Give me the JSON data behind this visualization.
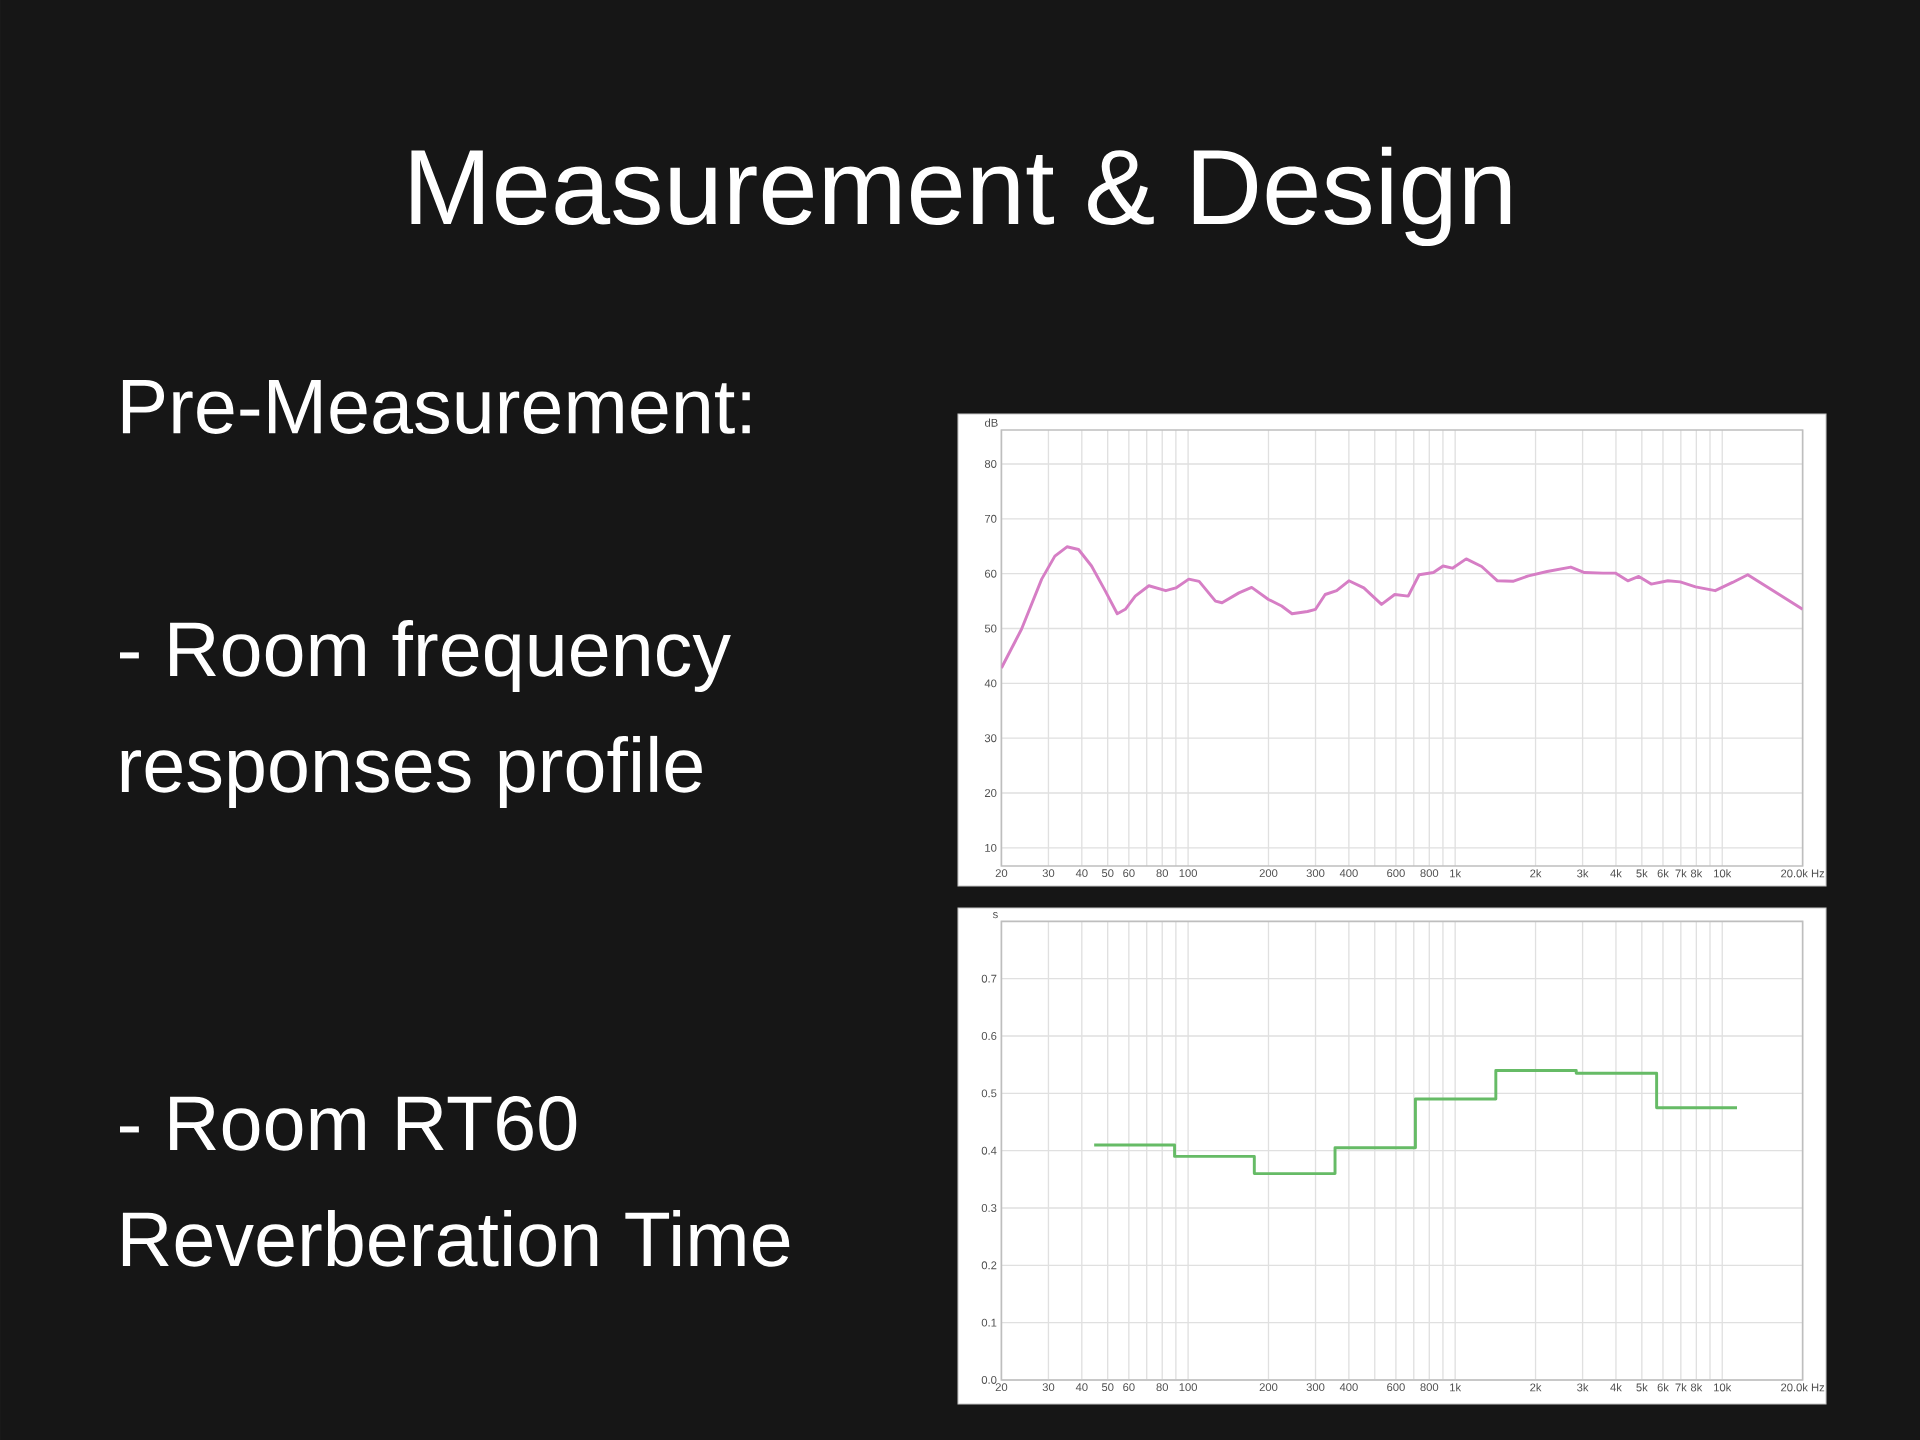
{
  "chart_data": [
    {
      "type": "other",
      "title": "Measurement & Design",
      "annotations": [
        "Pre-Measurement:",
        "- Room frequency responses profile",
        "- Room RT60 Reverberation Time"
      ]
    },
    {
      "type": "line",
      "ylabel": "dB",
      "color": "#d67ec5",
      "log": "x",
      "grid": true,
      "xlim": [
        20,
        20000
      ],
      "ylim": [
        6.7,
        86.2
      ],
      "xticks": [
        20,
        30,
        40,
        50,
        60,
        {
          "value": 70,
          "label": null
        },
        80,
        {
          "value": 90,
          "label": null
        },
        100,
        200,
        300,
        400,
        {
          "value": 500,
          "label": null
        },
        600,
        {
          "value": 700,
          "label": null
        },
        800,
        {
          "value": 900,
          "label": null
        },
        {
          "value": 1000,
          "label": "1k"
        },
        {
          "value": 2000,
          "label": "2k"
        },
        {
          "value": 3000,
          "label": "3k"
        },
        {
          "value": 4000,
          "label": "4k"
        },
        {
          "value": 5000,
          "label": "5k"
        },
        {
          "value": 6000,
          "label": "6k"
        },
        {
          "value": 7000,
          "label": "7k"
        },
        {
          "value": 8000,
          "label": "8k"
        },
        {
          "value": 9000,
          "label": null
        },
        {
          "value": 10000,
          "label": "10k"
        },
        {
          "value": 20000,
          "label": "20.0k Hz"
        }
      ],
      "yticks": [
        10,
        20,
        30,
        40,
        50,
        60,
        70,
        80
      ],
      "x": [
        20,
        23.8,
        28.3,
        31.7,
        35.2,
        38.9,
        43.5,
        48.9,
        54.3,
        58.2,
        63.4,
        71.3,
        82.5,
        90,
        100.6,
        110,
        126.6,
        134,
        155,
        173,
        200,
        224,
        245,
        280,
        300,
        326,
        360,
        400,
        455,
        530,
        594,
        667,
        733,
        829,
        901,
        977,
        1100,
        1257,
        1440,
        1645,
        1881,
        2210,
        2710,
        3050,
        3580,
        3980,
        4430,
        4870,
        5420,
        6260,
        6960,
        7950,
        9410,
        10930,
        12460,
        13860,
        20000
      ],
      "values": [
        42.8,
        49.9,
        59.0,
        63.2,
        64.9,
        64.4,
        61.4,
        56.9,
        52.7,
        53.5,
        55.9,
        57.8,
        56.9,
        57.4,
        59.0,
        58.6,
        55.0,
        54.7,
        56.5,
        57.5,
        55.3,
        54.1,
        52.7,
        53.1,
        53.5,
        56.2,
        56.9,
        58.7,
        57.4,
        54.4,
        56.2,
        55.9,
        59.8,
        60.2,
        61.4,
        61.0,
        62.7,
        61.3,
        58.7,
        58.6,
        59.6,
        60.4,
        61.2,
        60.2,
        60.1,
        60.1,
        58.7,
        59.5,
        58.1,
        58.7,
        58.5,
        57.6,
        56.9,
        58.4,
        59.8,
        58.4,
        53.5
      ]
    },
    {
      "type": "step",
      "ylabel": "s",
      "color": "#66bb66",
      "log": "x",
      "grid": true,
      "xlim": [
        20,
        20000
      ],
      "ylim": [
        0,
        0.8
      ],
      "xticks": [
        20,
        30,
        40,
        50,
        60,
        {
          "value": 70,
          "label": null
        },
        80,
        {
          "value": 90,
          "label": null
        },
        100,
        200,
        300,
        400,
        {
          "value": 500,
          "label": null
        },
        600,
        {
          "value": 700,
          "label": null
        },
        800,
        {
          "value": 900,
          "label": null
        },
        {
          "value": 1000,
          "label": "1k"
        },
        {
          "value": 2000,
          "label": "2k"
        },
        {
          "value": 3000,
          "label": "3k"
        },
        {
          "value": 4000,
          "label": "4k"
        },
        {
          "value": 5000,
          "label": "5k"
        },
        {
          "value": 6000,
          "label": "6k"
        },
        {
          "value": 7000,
          "label": "7k"
        },
        {
          "value": 8000,
          "label": "8k"
        },
        {
          "value": 9000,
          "label": null
        },
        {
          "value": 10000,
          "label": "10k"
        },
        {
          "value": 20000,
          "label": "20.0k Hz"
        }
      ],
      "yticks": [
        {
          "value": 0,
          "label": "0.0"
        },
        0.1,
        0.2,
        0.3,
        0.4,
        0.5,
        0.6,
        0.7
      ],
      "x": [
        44.5,
        89,
        177,
        355,
        710,
        1420,
        2840,
        5680,
        11360
      ],
      "values": [
        0.41,
        0.39,
        0.36,
        0.405,
        0.49,
        0.54,
        0.535,
        0.475,
        0.475
      ]
    }
  ]
}
